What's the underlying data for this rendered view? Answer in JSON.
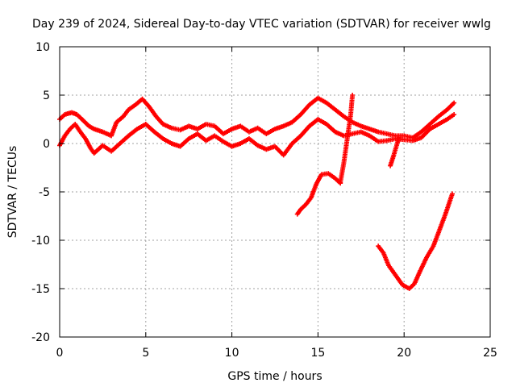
{
  "chart_data": {
    "type": "scatter",
    "title": "Day 239 of 2024, Sidereal Day-to-day VTEC variation (SDTVAR) for receiver wwlg",
    "xlabel": "GPS time / hours",
    "ylabel": "SDTVAR / TECUs",
    "xlim": [
      0,
      25
    ],
    "ylim": [
      -20,
      10
    ],
    "x_ticks": [
      "0",
      "5",
      "10",
      "15",
      "20",
      "25"
    ],
    "y_ticks": [
      "-20",
      "-15",
      "-10",
      "-5",
      "0",
      "5",
      "10"
    ],
    "grid": true,
    "legend": "none",
    "marker": "+",
    "color": "#ff0000",
    "series": [
      {
        "name": "main band upper",
        "x": [
          0,
          0.3,
          0.7,
          1.0,
          1.3,
          1.7,
          2.0,
          2.5,
          3.0,
          3.3,
          3.7,
          4.0,
          4.4,
          4.8,
          5.2,
          5.6,
          6.0,
          6.5,
          7.0,
          7.5,
          8.0,
          8.5,
          9.0,
          9.5,
          10.0,
          10.5,
          11.0,
          11.5,
          12.0,
          12.5,
          13.0,
          13.5,
          14.0,
          14.5,
          15.0,
          15.5,
          16.0,
          16.5,
          17.0,
          17.5,
          18.0,
          18.5,
          19.0,
          19.5,
          20.0,
          20.5,
          21.0,
          21.5,
          22.0,
          22.5,
          22.9
        ],
        "y": [
          2.5,
          3.0,
          3.2,
          3.0,
          2.5,
          1.8,
          1.5,
          1.2,
          0.8,
          2.2,
          2.8,
          3.5,
          4.0,
          4.6,
          3.8,
          2.8,
          2.0,
          1.6,
          1.4,
          1.8,
          1.5,
          2.0,
          1.8,
          1.0,
          1.5,
          1.8,
          1.2,
          1.6,
          1.0,
          1.5,
          1.8,
          2.2,
          3.0,
          4.0,
          4.7,
          4.2,
          3.5,
          2.8,
          2.2,
          1.8,
          1.5,
          1.2,
          1.0,
          0.8,
          0.8,
          0.6,
          1.2,
          2.0,
          2.8,
          3.5,
          4.2
        ]
      },
      {
        "name": "main band lower",
        "x": [
          0,
          0.3,
          0.6,
          0.9,
          1.2,
          1.5,
          1.8,
          2.0,
          2.5,
          3.0,
          3.5,
          4.0,
          4.5,
          5.0,
          5.5,
          6.0,
          6.5,
          7.0,
          7.5,
          8.0,
          8.5,
          9.0,
          9.5,
          10.0,
          10.5,
          11.0,
          11.5,
          12.0,
          12.5,
          13.0,
          13.5,
          14.0,
          14.5,
          15.0,
          15.5,
          16.0,
          16.5,
          17.0,
          17.5,
          18.0,
          18.5,
          19.0,
          19.5,
          20.0,
          20.5,
          21.0,
          21.5,
          22.0,
          22.5,
          22.9
        ],
        "y": [
          -0.2,
          0.8,
          1.5,
          2.0,
          1.2,
          0.5,
          -0.5,
          -1.0,
          -0.2,
          -0.8,
          0.0,
          0.8,
          1.5,
          2.0,
          1.2,
          0.5,
          0.0,
          -0.3,
          0.5,
          1.0,
          0.3,
          0.8,
          0.2,
          -0.3,
          0.0,
          0.5,
          -0.2,
          -0.6,
          -0.3,
          -1.2,
          0.0,
          0.8,
          1.8,
          2.5,
          2.0,
          1.2,
          0.8,
          1.0,
          1.2,
          0.8,
          0.2,
          0.3,
          0.5,
          0.4,
          0.3,
          0.6,
          1.5,
          2.0,
          2.5,
          3.0
        ]
      },
      {
        "name": "drop arc 13.8-16.3 h",
        "x": [
          13.8,
          14.0,
          14.3,
          14.6,
          14.9,
          15.2,
          15.6,
          16.0,
          16.3
        ],
        "y": [
          -7.3,
          -6.8,
          -6.3,
          -5.6,
          -4.2,
          -3.2,
          -3.1,
          -3.6,
          -4.1
        ]
      },
      {
        "name": "rising branch 16.3-17.0 h",
        "x": [
          16.3,
          16.5,
          16.7,
          16.9,
          17.0
        ],
        "y": [
          -4.0,
          -2.0,
          0.5,
          3.0,
          5.0
        ]
      },
      {
        "name": "dip 19.2-19.7 h",
        "x": [
          19.2,
          19.4,
          19.6,
          19.7
        ],
        "y": [
          -2.3,
          -1.2,
          0.0,
          0.6
        ]
      },
      {
        "name": "deep U 18.5-22.8 h",
        "x": [
          18.5,
          18.8,
          19.1,
          19.5,
          19.9,
          20.3,
          20.6,
          20.9,
          21.3,
          21.7,
          22.0,
          22.4,
          22.8
        ],
        "y": [
          -10.6,
          -11.3,
          -12.6,
          -13.6,
          -14.6,
          -15.0,
          -14.5,
          -13.3,
          -11.8,
          -10.6,
          -9.2,
          -7.3,
          -5.2
        ]
      }
    ]
  }
}
